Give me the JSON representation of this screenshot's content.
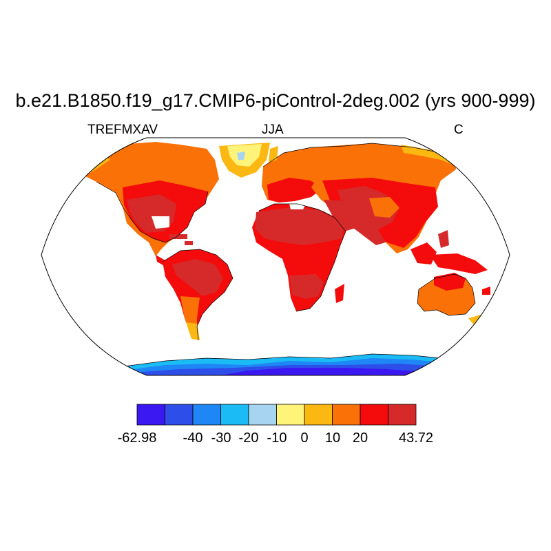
{
  "title": "b.e21.B1850.f19_g17.CMIP6-piControl-2deg.002 (yrs 900-999)",
  "subtitle_left": "TREFMXAV",
  "subtitle_center": "JJA",
  "subtitle_right": "C",
  "colorbar": {
    "colors": [
      "#3b17f2",
      "#2d4ee8",
      "#1f87f5",
      "#1bbcf5",
      "#a7d4f0",
      "#fff37a",
      "#fbb812",
      "#fa7108",
      "#f40b0b",
      "#d62a2a"
    ],
    "labels": [
      "-62.98",
      "-40",
      "-30",
      "-20",
      "-10",
      "0",
      "10",
      "20",
      "43.72"
    ],
    "min": -62.98,
    "max": 43.72
  },
  "map": {
    "projection": "Robinson",
    "ocean_color": "#ffffff",
    "border_color": "#000000"
  }
}
